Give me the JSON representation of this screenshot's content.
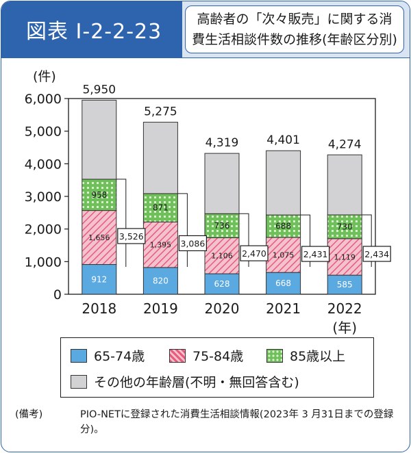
{
  "header": {
    "badge": "図表 I-2-2-23",
    "title_line1": "高齢者の「次々販売」に関する消",
    "title_line2": "費生活相談件数の推移(年齢区分別)"
  },
  "colors": {
    "brand_blue": "#2e63ad",
    "header_bg": "#d9e4f3",
    "age_65_74": "#5aa9e0",
    "age_75_84_bg": "#f4c2cf",
    "age_75_84_hatch": "#e85b7b",
    "age_85_plus_bg": "#6fbf5a",
    "age_85_plus_dots": "#d8f0cc",
    "other": "#d2d2d4"
  },
  "chart_data": {
    "type": "bar",
    "stacked": true,
    "categories": [
      "2018",
      "2019",
      "2020",
      "2021",
      "2022"
    ],
    "x_unit_label": "(年)",
    "y_unit_label": "(件)",
    "ylim": [
      0,
      6000
    ],
    "yticks": [
      0,
      1000,
      2000,
      3000,
      4000,
      5000,
      6000
    ],
    "ytick_labels": [
      "0",
      "1,000",
      "2,000",
      "3,000",
      "4,000",
      "5,000",
      "6,000"
    ],
    "series": [
      {
        "name": "65-74歳",
        "values": [
          912,
          820,
          628,
          668,
          585
        ],
        "labels": [
          "912",
          "820",
          "628",
          "668",
          "585"
        ],
        "label_color": "#ffffff"
      },
      {
        "name": "75-84歳",
        "values": [
          1656,
          1395,
          1106,
          1075,
          1119
        ],
        "labels": [
          "1,656",
          "1,395",
          "1,106",
          "1,075",
          "1,119"
        ],
        "label_color": "#1a1a1a"
      },
      {
        "name": "85歳以上",
        "values": [
          958,
          871,
          736,
          688,
          730
        ],
        "labels": [
          "958",
          "871",
          "736",
          "688",
          "730"
        ],
        "label_color": "#1a1a1a"
      },
      {
        "name": "その他の年齢層(不明・無回答含む)",
        "values": [
          2424,
          2189,
          1849,
          1970,
          1840
        ],
        "labels": null
      }
    ],
    "subtotals_65_plus": [
      "3,526",
      "3,086",
      "2,470",
      "2,431",
      "2,434"
    ],
    "subtotal_values": [
      3526,
      3086,
      2470,
      2431,
      2434
    ],
    "totals": [
      "5,950",
      "5,275",
      "4,319",
      "4,401",
      "4,274"
    ],
    "total_values": [
      5950,
      5275,
      4319,
      4401,
      4274
    ],
    "grid": false,
    "legend_position": "bottom"
  },
  "legend": {
    "item1": "65-74歳",
    "item2": "75-84歳",
    "item3": "85歳以上",
    "item4": "その他の年齢層(不明・無回答含む)"
  },
  "note": {
    "label": "(備考)",
    "text": "PIO-NETに登録された消費生活相談情報(2023年 3 月31日までの登録分)。"
  }
}
